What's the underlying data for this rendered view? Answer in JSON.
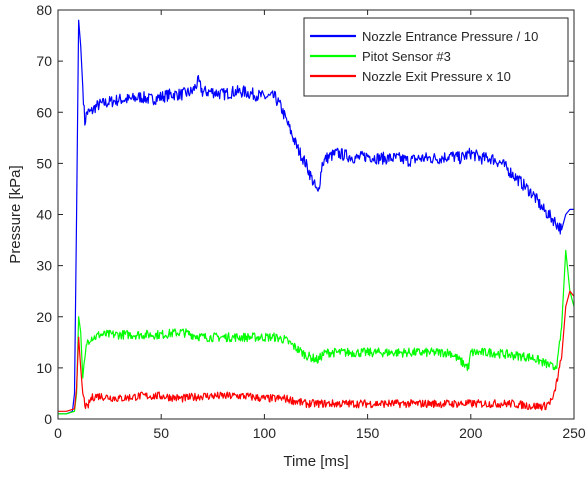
{
  "chart_data": {
    "type": "line",
    "title": "",
    "xlabel": "Time [ms]",
    "ylabel": "Pressure [kPa]",
    "xlim": [
      0,
      250
    ],
    "ylim": [
      0,
      80
    ],
    "xticks": [
      0,
      50,
      100,
      150,
      200,
      250
    ],
    "yticks": [
      0,
      10,
      20,
      30,
      40,
      50,
      60,
      70,
      80
    ],
    "grid": false,
    "legend_position": "top-right",
    "series": [
      {
        "name": "Nozzle Entrance Pressure / 10",
        "color": "#0000FF",
        "x": [
          0,
          4,
          7,
          8,
          9,
          10,
          11,
          12,
          13,
          14,
          16,
          18,
          20,
          25,
          30,
          35,
          40,
          45,
          50,
          55,
          60,
          65,
          68,
          70,
          75,
          80,
          85,
          90,
          95,
          100,
          105,
          108,
          112,
          116,
          120,
          124,
          126,
          127,
          128,
          130,
          135,
          140,
          145,
          150,
          155,
          160,
          165,
          170,
          175,
          180,
          185,
          190,
          195,
          200,
          205,
          210,
          215,
          220,
          225,
          230,
          235,
          240,
          244,
          246,
          248,
          250
        ],
        "y": [
          1,
          1,
          1.5,
          5,
          40,
          78,
          73,
          65,
          58,
          60,
          60,
          61,
          61.5,
          62,
          62.5,
          62.5,
          63,
          62.5,
          63,
          63.5,
          63.5,
          64,
          66,
          64,
          64,
          63.5,
          64,
          64,
          63.5,
          63,
          63,
          61,
          57,
          53,
          50,
          46,
          44,
          47,
          50,
          51,
          52,
          51.5,
          51,
          51.5,
          51,
          51,
          51,
          50.5,
          51,
          51,
          51,
          51.5,
          51,
          52,
          51,
          51,
          50,
          48,
          46,
          44,
          41,
          39,
          37,
          40,
          41,
          41
        ]
      },
      {
        "name": "Pitot Sensor #3",
        "color": "#00FF00",
        "x": [
          0,
          4,
          8,
          9,
          10,
          11,
          12,
          14,
          16,
          18,
          20,
          30,
          40,
          50,
          60,
          70,
          80,
          90,
          100,
          105,
          110,
          115,
          120,
          126,
          128,
          130,
          140,
          150,
          160,
          170,
          180,
          190,
          199,
          200,
          210,
          220,
          230,
          238,
          240,
          242,
          244,
          246,
          248,
          250
        ],
        "y": [
          1,
          1,
          1.5,
          5,
          20,
          17,
          8,
          15,
          16,
          16,
          16.5,
          16.5,
          16.5,
          16.5,
          17,
          16,
          16,
          16,
          16,
          16,
          15.5,
          14,
          12.5,
          11.5,
          12.5,
          13,
          13,
          13,
          13,
          13,
          13,
          13,
          10,
          13,
          13,
          12.5,
          12,
          10.5,
          10,
          11,
          18,
          33,
          25,
          22
        ]
      },
      {
        "name": "Nozzle Exit Pressure x 10",
        "color": "#FF0000",
        "x": [
          0,
          4,
          8,
          9,
          10,
          11,
          12,
          13,
          14,
          16,
          18,
          20,
          30,
          40,
          50,
          60,
          70,
          80,
          90,
          100,
          105,
          110,
          115,
          120,
          125,
          130,
          140,
          150,
          160,
          170,
          180,
          190,
          200,
          210,
          220,
          230,
          236,
          240,
          242,
          244,
          246,
          248,
          250
        ],
        "y": [
          1.5,
          1.5,
          2,
          6,
          16,
          10,
          5,
          3,
          2,
          4,
          4.5,
          4.5,
          4,
          4.5,
          4.5,
          4,
          4.5,
          4.5,
          4.5,
          4,
          4,
          4,
          3.5,
          3,
          3,
          3,
          3,
          3,
          3,
          3,
          3,
          3,
          3,
          3,
          3,
          2.5,
          2.5,
          4,
          8,
          12,
          22,
          25,
          24
        ]
      }
    ]
  }
}
